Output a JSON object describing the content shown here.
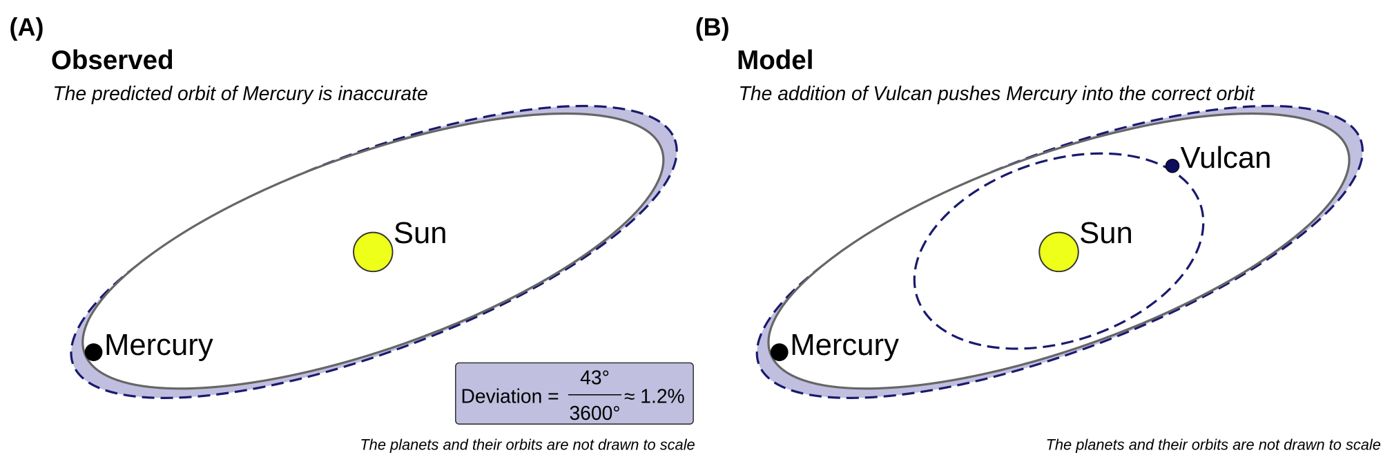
{
  "panels": [
    {
      "label": "(A)",
      "title": "Observed",
      "subtitle": "The predicted orbit of Mercury is inaccurate",
      "bodies": {
        "sun": "Sun",
        "mercury": "Mercury"
      },
      "deviation": {
        "label": "Deviation =",
        "numerator": "43°",
        "denominator": "3600°",
        "approx": "≈ 1.2%"
      },
      "footnote": "The planets and their orbits are not drawn to scale"
    },
    {
      "label": "(B)",
      "title": "Model",
      "subtitle": "The addition of Vulcan pushes Mercury into the correct orbit",
      "bodies": {
        "sun": "Sun",
        "mercury": "Mercury",
        "vulcan": "Vulcan"
      },
      "footnote": "The planets and their orbits are not drawn to scale"
    }
  ]
}
